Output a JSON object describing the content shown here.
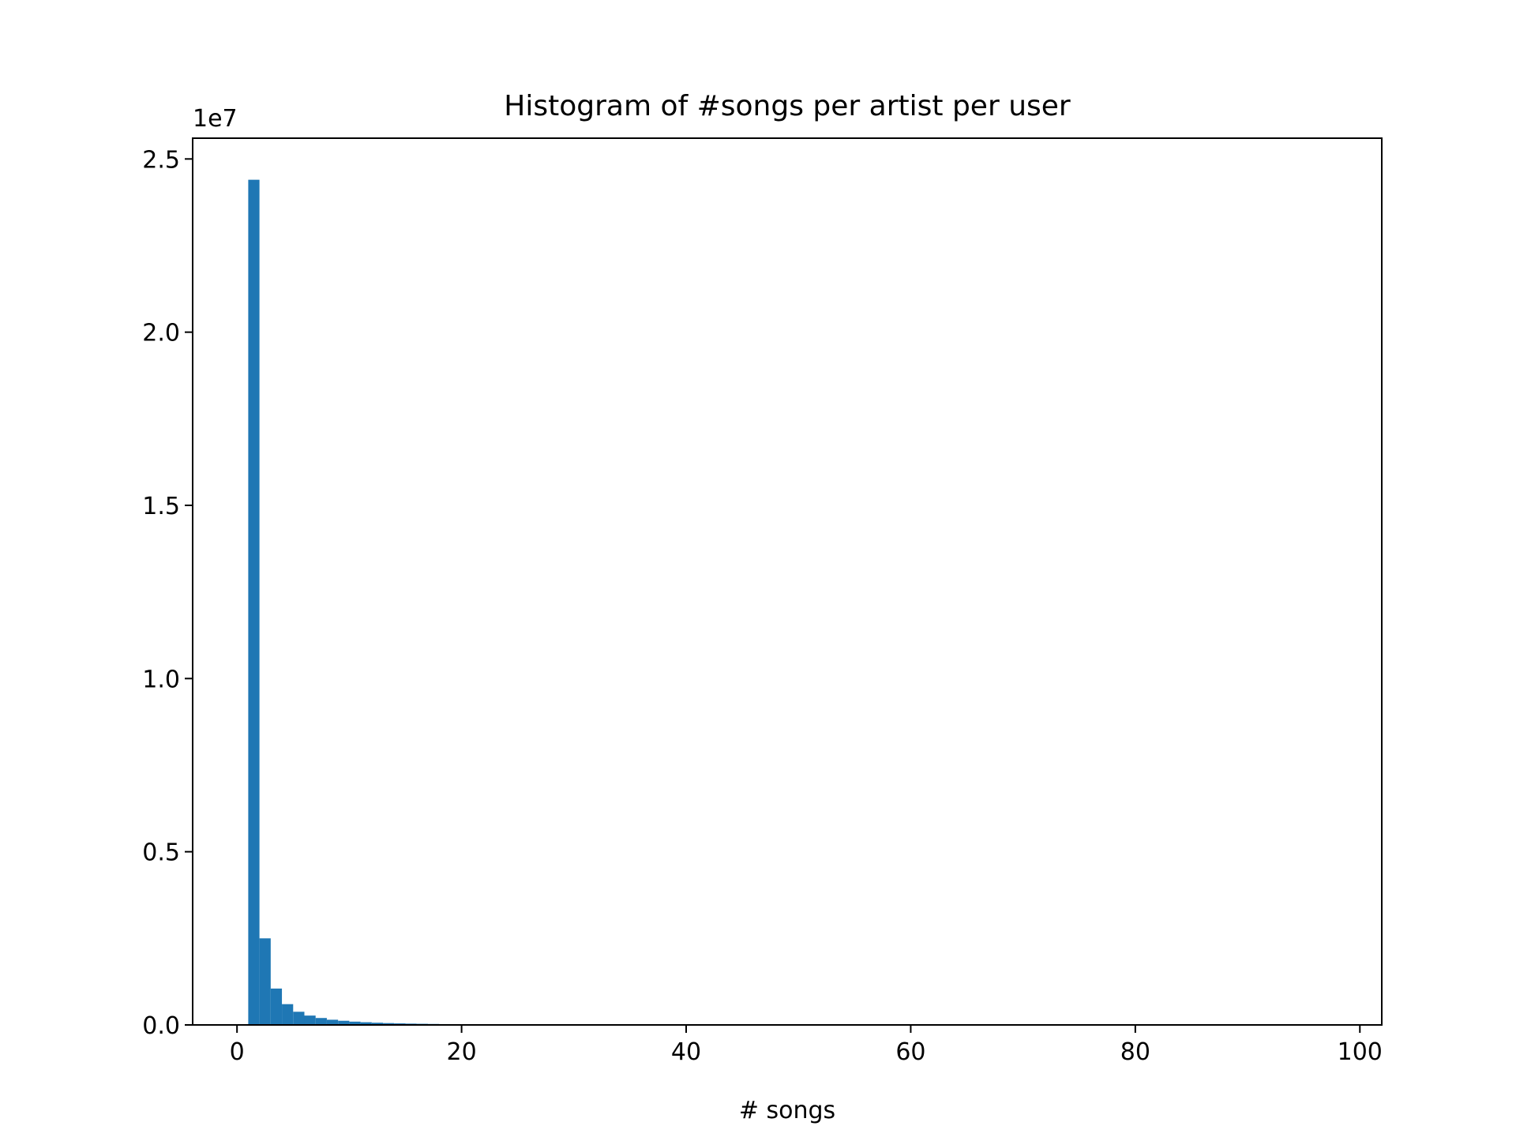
{
  "chart_data": {
    "type": "bar",
    "title": "Histogram of #songs per artist per user",
    "xlabel": "# songs",
    "ylabel": "",
    "y_scale_label": "1e7",
    "y_scale_factor": 10000000,
    "xlim": [
      -3.95,
      101.95
    ],
    "ylim": [
      0,
      25600000
    ],
    "x_ticks": [
      0,
      20,
      40,
      60,
      80,
      100
    ],
    "x_tick_labels": [
      "0",
      "20",
      "40",
      "60",
      "80",
      "100"
    ],
    "y_ticks": [
      0,
      5000000,
      10000000,
      15000000,
      20000000,
      25000000
    ],
    "y_tick_labels": [
      "0.0",
      "0.5",
      "1.0",
      "1.5",
      "2.0",
      "2.5"
    ],
    "grid": false,
    "bar_color": "#1f77b4",
    "bin_edges": [
      1,
      2,
      3,
      4,
      5,
      6,
      7,
      8,
      9,
      10,
      11,
      12,
      13,
      14,
      15,
      16,
      17,
      18,
      19,
      20,
      21,
      22,
      23,
      24,
      25,
      26,
      27,
      28,
      29,
      30,
      31,
      32,
      33,
      34,
      35,
      36,
      37,
      38,
      39,
      40,
      41,
      42,
      43,
      44,
      45,
      46,
      47,
      48,
      49,
      50,
      51,
      52,
      53,
      54,
      55,
      56,
      57,
      58,
      59,
      60,
      61,
      62,
      63,
      64,
      65,
      66,
      67,
      68,
      69,
      70,
      71,
      72,
      73,
      74,
      75,
      76,
      77,
      78,
      79,
      80,
      81,
      82,
      83,
      84,
      85,
      86,
      87,
      88,
      89,
      90,
      91,
      92,
      93,
      94,
      95,
      96,
      97,
      98,
      99
    ],
    "values": [
      24400000,
      2500000,
      1050000,
      600000,
      380000,
      270000,
      200000,
      150000,
      120000,
      95000,
      78000,
      64000,
      53000,
      45000,
      38000,
      33000,
      28000,
      24000,
      21000,
      18500,
      16500,
      14500,
      13000,
      11600,
      10400,
      9400,
      8500,
      7700,
      7000,
      6400,
      5800,
      5300,
      4900,
      4500,
      4100,
      3800,
      3500,
      3250,
      3000,
      2800,
      2600,
      2400,
      2250,
      2100,
      1950,
      1820,
      1700,
      1590,
      1490,
      1400,
      1310,
      1230,
      1160,
      1090,
      1030,
      970,
      915,
      865,
      818,
      773,
      731,
      692,
      655,
      620,
      588,
      557,
      528,
      501,
      475,
      451,
      428,
      407,
      387,
      368,
      350,
      333,
      317,
      302,
      287,
      274,
      261,
      249,
      237,
      226,
      216,
      206,
      197,
      188,
      180,
      172,
      164,
      157,
      150,
      144,
      138,
      132,
      126,
      121
    ]
  }
}
